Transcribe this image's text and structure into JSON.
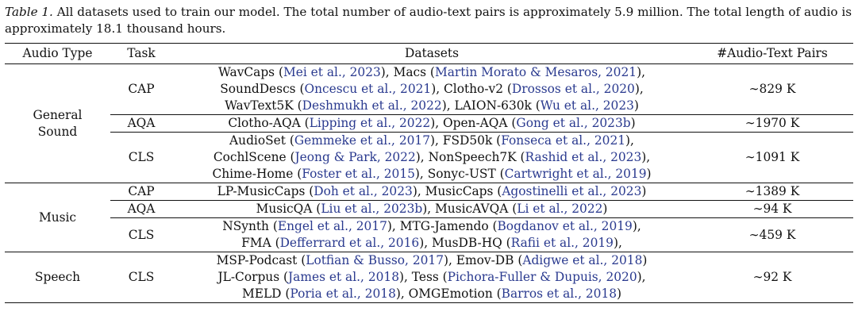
{
  "caption": {
    "lead": "Table 1.",
    "text": " All datasets used to train our model. The total number of audio-text pairs is approximately 5.9 million. The total length of audio is approximately 18.1 thousand hours."
  },
  "headers": [
    "Audio Type",
    "Task",
    "Datasets",
    "#Audio-Text Pairs"
  ],
  "groups": [
    {
      "type": "General Sound",
      "rows": [
        {
          "task": "CAP",
          "pairs": "∼829 K",
          "lines": [
            [
              {
                "t": "WavCaps ("
              },
              {
                "t": "Mei et al., 2023",
                "c": 1
              },
              {
                "t": "), Macs ("
              },
              {
                "t": "Martin Morato & Mesaros, 2021",
                "c": 1
              },
              {
                "t": "),"
              }
            ],
            [
              {
                "t": "SoundDescs ("
              },
              {
                "t": "Oncescu et al., 2021",
                "c": 1
              },
              {
                "t": "), Clotho-v2 ("
              },
              {
                "t": "Drossos et al., 2020",
                "c": 1
              },
              {
                "t": "),"
              }
            ],
            [
              {
                "t": "WavText5K ("
              },
              {
                "t": "Deshmukh et al., 2022",
                "c": 1
              },
              {
                "t": "), LAION-630k ("
              },
              {
                "t": "Wu et al., 2023",
                "c": 1
              },
              {
                "t": ")"
              }
            ]
          ]
        },
        {
          "task": "AQA",
          "pairs": "∼1970 K",
          "lines": [
            [
              {
                "t": "Clotho-AQA ("
              },
              {
                "t": "Lipping et al., 2022",
                "c": 1
              },
              {
                "t": "), Open-AQA ("
              },
              {
                "t": "Gong et al., 2023b",
                "c": 1
              },
              {
                "t": ")"
              }
            ]
          ]
        },
        {
          "task": "CLS",
          "pairs": "∼1091 K",
          "lines": [
            [
              {
                "t": "AudioSet ("
              },
              {
                "t": "Gemmeke et al., 2017",
                "c": 1
              },
              {
                "t": "), FSD50k ("
              },
              {
                "t": "Fonseca et al., 2021",
                "c": 1
              },
              {
                "t": "),"
              }
            ],
            [
              {
                "t": "CochlScene ("
              },
              {
                "t": "Jeong & Park, 2022",
                "c": 1
              },
              {
                "t": "), NonSpeech7K ("
              },
              {
                "t": "Rashid et al., 2023",
                "c": 1
              },
              {
                "t": "),"
              }
            ],
            [
              {
                "t": "Chime-Home ("
              },
              {
                "t": "Foster et al., 2015",
                "c": 1
              },
              {
                "t": "), Sonyc-UST ("
              },
              {
                "t": "Cartwright et al., 2019",
                "c": 1
              },
              {
                "t": ")"
              }
            ]
          ]
        }
      ]
    },
    {
      "type": "Music",
      "rows": [
        {
          "task": "CAP",
          "pairs": "∼1389 K",
          "lines": [
            [
              {
                "t": "LP-MusicCaps ("
              },
              {
                "t": "Doh et al., 2023",
                "c": 1
              },
              {
                "t": "), MusicCaps ("
              },
              {
                "t": "Agostinelli et al., 2023",
                "c": 1
              },
              {
                "t": ")"
              }
            ]
          ]
        },
        {
          "task": "AQA",
          "pairs": "∼94 K",
          "lines": [
            [
              {
                "t": "MusicQA ("
              },
              {
                "t": "Liu et al., 2023b",
                "c": 1
              },
              {
                "t": "), MusicAVQA ("
              },
              {
                "t": "Li et al., 2022",
                "c": 1
              },
              {
                "t": ")"
              }
            ]
          ]
        },
        {
          "task": "CLS",
          "pairs": "∼459 K",
          "lines": [
            [
              {
                "t": "NSynth ("
              },
              {
                "t": "Engel et al., 2017",
                "c": 1
              },
              {
                "t": "), MTG-Jamendo ("
              },
              {
                "t": "Bogdanov et al., 2019",
                "c": 1
              },
              {
                "t": "),"
              }
            ],
            [
              {
                "t": "FMA ("
              },
              {
                "t": "Defferrard et al., 2016",
                "c": 1
              },
              {
                "t": "), MusDB-HQ ("
              },
              {
                "t": "Rafii et al., 2019",
                "c": 1
              },
              {
                "t": "),"
              }
            ]
          ]
        }
      ]
    },
    {
      "type": "Speech",
      "rows": [
        {
          "task": "CLS",
          "pairs": "∼92 K",
          "lines": [
            [
              {
                "t": "MSP-Podcast ("
              },
              {
                "t": "Lotfian & Busso, 2017",
                "c": 1
              },
              {
                "t": "), Emov-DB ("
              },
              {
                "t": "Adigwe et al., 2018",
                "c": 1
              },
              {
                "t": ")"
              }
            ],
            [
              {
                "t": "JL-Corpus ("
              },
              {
                "t": "James et al., 2018",
                "c": 1
              },
              {
                "t": "), Tess ("
              },
              {
                "t": "Pichora-Fuller & Dupuis, 2020",
                "c": 1
              },
              {
                "t": "),"
              }
            ],
            [
              {
                "t": "MELD ("
              },
              {
                "t": "Poria et al., 2018",
                "c": 1
              },
              {
                "t": "), OMGEmotion ("
              },
              {
                "t": "Barros et al., 2018",
                "c": 1
              },
              {
                "t": ")"
              }
            ]
          ]
        }
      ]
    }
  ]
}
